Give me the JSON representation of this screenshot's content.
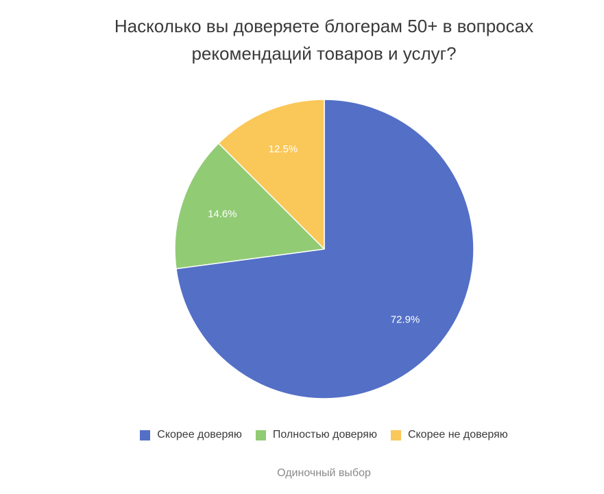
{
  "chart_data": {
    "type": "pie",
    "title_lines": [
      "Насколько вы доверяете блогерам 50+ в вопросах",
      "рекомендаций товаров и услуг?"
    ],
    "categories": [
      "Скорее доверяю",
      "Полностью доверяю",
      "Скорее не доверяю"
    ],
    "values": [
      72.9,
      14.6,
      12.5
    ],
    "labels": [
      "72.9%",
      "14.6%",
      "12.5%"
    ],
    "colors": [
      "#5470c6",
      "#91cc75",
      "#fac858"
    ],
    "start_angle": "12 o'clock",
    "direction": "clockwise",
    "legend_position": "bottom"
  },
  "footnote": "Одиночный выбор"
}
